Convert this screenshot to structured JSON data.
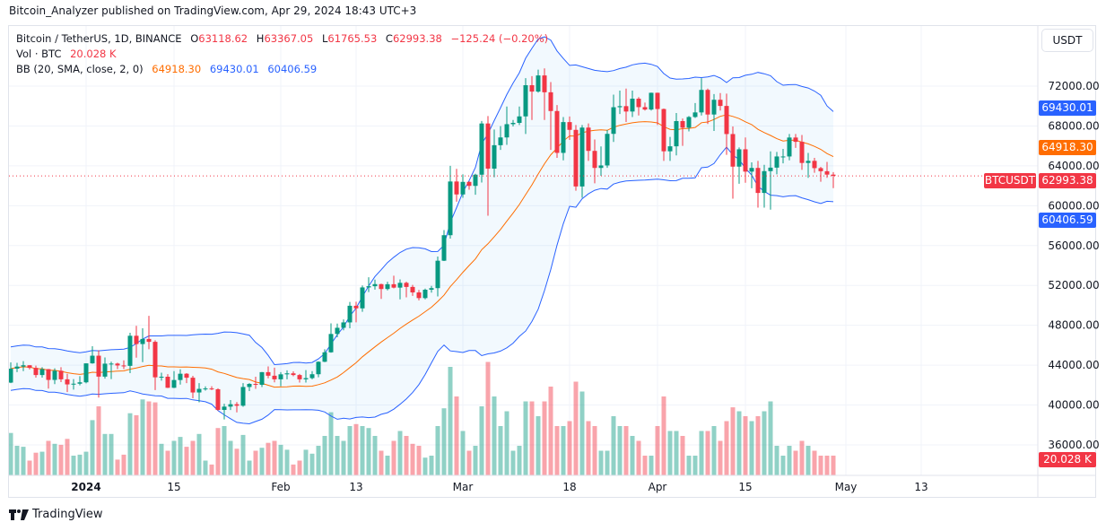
{
  "publisher_line": "Bitcoin_Analyzer published on TradingView.com, Apr 29, 2024 18:43 UTC+3",
  "legend": {
    "symbol": "Bitcoin / TetherUS, 1D, BINANCE",
    "open_label": "O",
    "open": "63118.62",
    "high_label": "H",
    "high": "63367.05",
    "low_label": "L",
    "low": "61765.53",
    "close_label": "C",
    "close": "62993.38",
    "change": "−125.24 (−0.20%)",
    "vol_label": "Vol · BTC",
    "vol_value": "20.028 K",
    "bb_label": "BB (20, SMA, close, 2, 0)",
    "bb_basis": "64918.30",
    "bb_upper": "69430.01",
    "bb_lower": "60406.59"
  },
  "price_axis": {
    "currency_button": "USDT",
    "ticks": [
      "72000.00",
      "68000.00",
      "64000.00",
      "60000.00",
      "56000.00",
      "52000.00",
      "48000.00",
      "44000.00",
      "40000.00",
      "36000.00"
    ],
    "labels": {
      "bb_upper": "69430.01",
      "bb_basis": "64918.30",
      "last_price": "62993.38",
      "bb_lower": "60406.59",
      "volume": "20.028 K",
      "symbol_tag": "BTCUSDT"
    }
  },
  "time_axis": {
    "ticks": [
      {
        "label": "2024",
        "date": "2024-01-01",
        "bold": true
      },
      {
        "label": "15",
        "date": "2024-01-15"
      },
      {
        "label": "Feb",
        "date": "2024-02-01"
      },
      {
        "label": "13",
        "date": "2024-02-13"
      },
      {
        "label": "Mar",
        "date": "2024-03-01"
      },
      {
        "label": "18",
        "date": "2024-03-18"
      },
      {
        "label": "Apr",
        "date": "2024-04-01"
      },
      {
        "label": "15",
        "date": "2024-04-15"
      },
      {
        "label": "May",
        "date": "2024-05-01"
      },
      {
        "label": "13",
        "date": "2024-05-13"
      }
    ]
  },
  "footer_brand": "TradingView",
  "colors": {
    "up": "#089981",
    "down": "#F23645",
    "bb_band": "#2962FF",
    "bb_basis": "#FF6D00",
    "band_fill": "#2196F3",
    "grid": "#f0f3fa"
  },
  "chart_data": {
    "type": "candlestick",
    "indicator": "Bollinger Bands (20, SMA, close, 2)",
    "ylim": [
      34000,
      75000
    ],
    "volume_unit": "K BTC",
    "fields": [
      "date",
      "open",
      "high",
      "low",
      "close",
      "volume"
    ],
    "candles": [
      [
        "2023-12-20",
        42250,
        44280,
        42200,
        43650,
        43
      ],
      [
        "2023-12-21",
        43650,
        44240,
        43300,
        43860,
        30
      ],
      [
        "2023-12-22",
        43860,
        44400,
        43400,
        43990,
        29
      ],
      [
        "2023-12-23",
        43990,
        44000,
        43570,
        43730,
        15
      ],
      [
        "2023-12-24",
        43730,
        43950,
        42750,
        43010,
        23
      ],
      [
        "2023-12-25",
        43010,
        43800,
        42750,
        43600,
        24
      ],
      [
        "2023-12-26",
        43600,
        43620,
        41650,
        42520,
        35
      ],
      [
        "2023-12-27",
        42520,
        43680,
        42100,
        43440,
        32
      ],
      [
        "2023-12-28",
        43440,
        43800,
        42300,
        42580,
        31
      ],
      [
        "2023-12-29",
        42580,
        43130,
        41300,
        42070,
        37
      ],
      [
        "2023-12-30",
        42070,
        42600,
        41550,
        42140,
        20
      ],
      [
        "2023-12-31",
        42140,
        42900,
        41970,
        42280,
        21
      ],
      [
        "2024-01-01",
        42280,
        44180,
        42180,
        44180,
        24
      ],
      [
        "2024-01-02",
        44180,
        45900,
        44150,
        44950,
        56
      ],
      [
        "2024-01-03",
        44950,
        45500,
        40750,
        42850,
        70
      ],
      [
        "2024-01-04",
        42850,
        44780,
        42650,
        44150,
        42
      ],
      [
        "2024-01-05",
        44150,
        44350,
        42600,
        44160,
        42
      ],
      [
        "2024-01-06",
        44160,
        44250,
        43600,
        43970,
        16
      ],
      [
        "2024-01-07",
        43970,
        44480,
        43600,
        43930,
        21
      ],
      [
        "2024-01-08",
        43930,
        47250,
        43200,
        46950,
        63
      ],
      [
        "2024-01-09",
        46950,
        47950,
        44750,
        46120,
        61
      ],
      [
        "2024-01-10",
        46120,
        47700,
        44300,
        46630,
        77
      ],
      [
        "2024-01-11",
        46630,
        48950,
        45600,
        46340,
        75
      ],
      [
        "2024-01-12",
        46340,
        46500,
        41500,
        42780,
        74
      ],
      [
        "2024-01-13",
        42780,
        43250,
        42450,
        42840,
        32
      ],
      [
        "2024-01-14",
        42840,
        43100,
        41700,
        41730,
        25
      ],
      [
        "2024-01-15",
        41730,
        43400,
        41700,
        42510,
        35
      ],
      [
        "2024-01-16",
        42510,
        43580,
        42050,
        43140,
        39
      ],
      [
        "2024-01-17",
        43140,
        43200,
        42200,
        42740,
        29
      ],
      [
        "2024-01-18",
        42740,
        42930,
        40680,
        41260,
        35
      ],
      [
        "2024-01-19",
        41260,
        42200,
        40280,
        41620,
        42
      ],
      [
        "2024-01-20",
        41620,
        41870,
        41450,
        41660,
        15
      ],
      [
        "2024-01-21",
        41660,
        41880,
        41500,
        41580,
        11
      ],
      [
        "2024-01-22",
        41580,
        41680,
        39430,
        39510,
        48
      ],
      [
        "2024-01-23",
        39510,
        40130,
        38550,
        39840,
        50
      ],
      [
        "2024-01-24",
        39840,
        40500,
        39500,
        40080,
        35
      ],
      [
        "2024-01-25",
        40080,
        40300,
        39260,
        39930,
        27
      ],
      [
        "2024-01-26",
        39930,
        42200,
        39820,
        41810,
        41
      ],
      [
        "2024-01-27",
        41810,
        42200,
        41400,
        42120,
        15
      ],
      [
        "2024-01-28",
        42120,
        42840,
        41620,
        42030,
        25
      ],
      [
        "2024-01-29",
        42030,
        43310,
        41800,
        43300,
        28
      ],
      [
        "2024-01-30",
        43300,
        43880,
        42680,
        42940,
        33
      ],
      [
        "2024-01-31",
        42940,
        43750,
        42280,
        42580,
        35
      ],
      [
        "2024-02-01",
        42580,
        43300,
        41880,
        43080,
        31
      ],
      [
        "2024-02-02",
        43080,
        43480,
        42580,
        43180,
        26
      ],
      [
        "2024-02-03",
        43180,
        43380,
        42880,
        43010,
        11
      ],
      [
        "2024-02-04",
        43010,
        43120,
        42250,
        42580,
        15
      ],
      [
        "2024-02-05",
        42580,
        43500,
        42250,
        42700,
        26
      ],
      [
        "2024-02-06",
        42700,
        43400,
        42580,
        43090,
        22
      ],
      [
        "2024-02-07",
        43090,
        44380,
        42780,
        44340,
        30
      ],
      [
        "2024-02-08",
        44340,
        45600,
        44300,
        45290,
        40
      ],
      [
        "2024-02-09",
        45290,
        48200,
        45250,
        47130,
        64
      ],
      [
        "2024-02-10",
        47130,
        48170,
        46800,
        47750,
        40
      ],
      [
        "2024-02-11",
        47750,
        48590,
        47500,
        48290,
        35
      ],
      [
        "2024-02-12",
        48290,
        50340,
        47700,
        49960,
        50
      ],
      [
        "2024-02-13",
        49960,
        50370,
        48300,
        49700,
        52
      ],
      [
        "2024-02-14",
        49700,
        52000,
        49350,
        51800,
        50
      ],
      [
        "2024-02-15",
        51800,
        52820,
        51330,
        51920,
        48
      ],
      [
        "2024-02-16",
        51920,
        52580,
        51580,
        52130,
        40
      ],
      [
        "2024-02-17",
        52130,
        52180,
        50650,
        51640,
        25
      ],
      [
        "2024-02-18",
        51640,
        52370,
        51500,
        52120,
        20
      ],
      [
        "2024-02-19",
        52120,
        52980,
        51700,
        51780,
        35
      ],
      [
        "2024-02-20",
        51780,
        52600,
        50600,
        52260,
        45
      ],
      [
        "2024-02-21",
        52260,
        52380,
        50800,
        51850,
        40
      ],
      [
        "2024-02-22",
        51850,
        52050,
        50950,
        51300,
        32
      ],
      [
        "2024-02-23",
        51300,
        51550,
        50500,
        50730,
        30
      ],
      [
        "2024-02-24",
        50730,
        51680,
        50600,
        51570,
        18
      ],
      [
        "2024-02-25",
        51570,
        51950,
        51280,
        51730,
        20
      ],
      [
        "2024-02-26",
        51730,
        54900,
        50900,
        54480,
        50
      ],
      [
        "2024-02-27",
        54480,
        57550,
        54450,
        57040,
        68
      ],
      [
        "2024-02-28",
        57040,
        64000,
        56700,
        62430,
        110
      ],
      [
        "2024-02-29",
        62430,
        63700,
        60400,
        61130,
        80
      ],
      [
        "2024-03-01",
        61130,
        63150,
        60800,
        62390,
        45
      ],
      [
        "2024-03-02",
        62390,
        62450,
        61600,
        61990,
        25
      ],
      [
        "2024-03-03",
        61990,
        63200,
        61100,
        63110,
        30
      ],
      [
        "2024-03-04",
        63110,
        68500,
        62330,
        68250,
        70
      ],
      [
        "2024-03-05",
        68250,
        69000,
        59000,
        63720,
        115
      ],
      [
        "2024-03-06",
        63720,
        67650,
        62850,
        66070,
        80
      ],
      [
        "2024-03-07",
        66070,
        67980,
        65600,
        66850,
        50
      ],
      [
        "2024-03-08",
        66850,
        69950,
        66100,
        68180,
        65
      ],
      [
        "2024-03-09",
        68180,
        68600,
        67950,
        68310,
        25
      ],
      [
        "2024-03-10",
        68310,
        69950,
        68100,
        68960,
        30
      ],
      [
        "2024-03-11",
        68960,
        72800,
        67200,
        72090,
        75
      ],
      [
        "2024-03-12",
        72090,
        73000,
        68600,
        71450,
        75
      ],
      [
        "2024-03-13",
        71450,
        73650,
        71350,
        73070,
        60
      ],
      [
        "2024-03-14",
        73070,
        73780,
        68600,
        71380,
        75
      ],
      [
        "2024-03-15",
        71380,
        72400,
        65600,
        69500,
        90
      ],
      [
        "2024-03-16",
        69500,
        70100,
        64800,
        65300,
        50
      ],
      [
        "2024-03-17",
        65300,
        68900,
        64550,
        68390,
        50
      ],
      [
        "2024-03-18",
        68390,
        68950,
        66600,
        67610,
        55
      ],
      [
        "2024-03-19",
        67610,
        68100,
        61500,
        61930,
        95
      ],
      [
        "2024-03-20",
        61930,
        68100,
        60800,
        67840,
        85
      ],
      [
        "2024-03-21",
        67840,
        68250,
        64500,
        65500,
        55
      ],
      [
        "2024-03-22",
        65500,
        66650,
        62250,
        63790,
        50
      ],
      [
        "2024-03-23",
        63790,
        65950,
        63000,
        64040,
        25
      ],
      [
        "2024-03-24",
        64040,
        67600,
        63800,
        67210,
        25
      ],
      [
        "2024-03-25",
        67210,
        71150,
        66400,
        69880,
        60
      ],
      [
        "2024-03-26",
        69880,
        71550,
        69200,
        69990,
        50
      ],
      [
        "2024-03-27",
        69990,
        71750,
        68400,
        69450,
        50
      ],
      [
        "2024-03-28",
        69450,
        71550,
        68900,
        70740,
        40
      ],
      [
        "2024-03-29",
        70740,
        70900,
        69050,
        69890,
        35
      ],
      [
        "2024-03-30",
        69890,
        70350,
        69550,
        69650,
        20
      ],
      [
        "2024-03-31",
        69650,
        71350,
        69550,
        71330,
        20
      ],
      [
        "2024-04-01",
        71330,
        71350,
        68100,
        69700,
        50
      ],
      [
        "2024-04-02",
        69700,
        69750,
        64500,
        65460,
        80
      ],
      [
        "2024-04-03",
        65460,
        66900,
        64500,
        65960,
        45
      ],
      [
        "2024-04-04",
        65960,
        69300,
        65050,
        68490,
        45
      ],
      [
        "2024-04-05",
        68490,
        68750,
        66000,
        67830,
        40
      ],
      [
        "2024-04-06",
        67830,
        69000,
        67450,
        68900,
        20
      ],
      [
        "2024-04-07",
        68900,
        70300,
        68800,
        69360,
        20
      ],
      [
        "2024-04-08",
        69360,
        72800,
        69050,
        71620,
        45
      ],
      [
        "2024-04-09",
        71620,
        71750,
        68200,
        69150,
        45
      ],
      [
        "2024-04-10",
        69150,
        71200,
        67500,
        70630,
        50
      ],
      [
        "2024-04-11",
        70630,
        71300,
        69550,
        70010,
        35
      ],
      [
        "2024-04-12",
        70010,
        71250,
        65100,
        67190,
        55
      ],
      [
        "2024-04-13",
        67190,
        67950,
        60700,
        63920,
        69
      ],
      [
        "2024-04-14",
        63920,
        65850,
        62200,
        65660,
        65
      ],
      [
        "2024-04-15",
        65660,
        66850,
        62300,
        63420,
        60
      ],
      [
        "2024-04-16",
        63420,
        64350,
        61750,
        63790,
        55
      ],
      [
        "2024-04-17",
        63790,
        64500,
        59800,
        61280,
        60
      ],
      [
        "2024-04-18",
        61280,
        64100,
        59800,
        63470,
        65
      ],
      [
        "2024-04-19",
        63470,
        65450,
        59600,
        63820,
        75
      ],
      [
        "2024-04-20",
        63820,
        65400,
        63150,
        64940,
        30
      ],
      [
        "2024-04-21",
        64940,
        65700,
        64250,
        64940,
        20
      ],
      [
        "2024-04-22",
        64940,
        67200,
        64550,
        66840,
        30
      ],
      [
        "2024-04-23",
        66840,
        67200,
        65800,
        66410,
        25
      ],
      [
        "2024-04-24",
        66410,
        67100,
        63600,
        64290,
        35
      ],
      [
        "2024-04-25",
        64290,
        65300,
        62800,
        64500,
        30
      ],
      [
        "2024-04-26",
        64500,
        64800,
        63300,
        63770,
        25
      ],
      [
        "2024-04-27",
        63770,
        63900,
        62400,
        63460,
        20
      ],
      [
        "2024-04-28",
        63460,
        64400,
        62800,
        63120,
        20
      ],
      [
        "2024-04-29",
        63118.62,
        63367.05,
        61765.53,
        62993.38,
        20.028
      ]
    ]
  }
}
